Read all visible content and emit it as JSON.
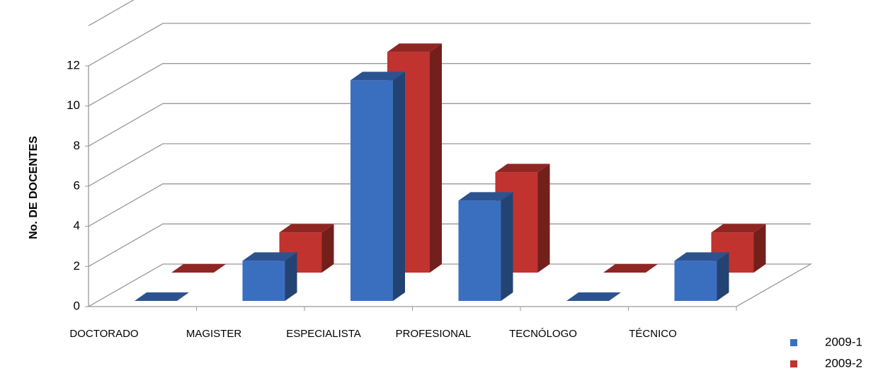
{
  "chart_data": {
    "type": "bar3d",
    "y_label": "No. DE DOCENTES",
    "categories": [
      "DOCTORADO",
      "MAGISTER",
      "ESPECIALISTA",
      "PROFESIONAL",
      "TECNÓLOGO",
      "TÉCNICO"
    ],
    "series": [
      {
        "name": "2009-1",
        "color": "#3a6fbf",
        "values": [
          0,
          2,
          11,
          5,
          0,
          2
        ]
      },
      {
        "name": "2009-2",
        "color": "#c0332e",
        "values": [
          0,
          2,
          11,
          5,
          0,
          2
        ]
      }
    ],
    "ylim": [
      0,
      14
    ],
    "yticks": [
      0,
      2,
      4,
      6,
      8,
      10,
      12
    ],
    "grid": true
  }
}
